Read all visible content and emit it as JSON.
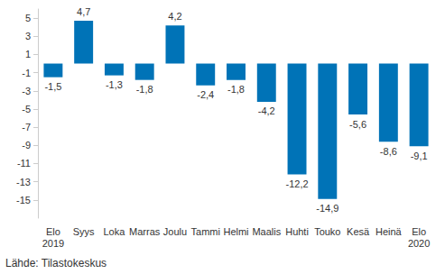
{
  "chart_data": {
    "type": "bar",
    "categories": [
      "Elo\n2019",
      "Syys",
      "Loka",
      "Marras",
      "Joulu",
      "Tammi",
      "Helmi",
      "Maalis",
      "Huhti",
      "Touko",
      "Kesä",
      "Heinä",
      "Elo\n2020"
    ],
    "values": [
      -1.5,
      4.7,
      -1.3,
      -1.8,
      4.2,
      -2.4,
      -1.8,
      -4.2,
      -12.2,
      -14.9,
      -5.6,
      -8.6,
      -9.1
    ],
    "value_labels": [
      "-1,5",
      "4,7",
      "-1,3",
      "-1,8",
      "4,2",
      "-2,4",
      "-1,8",
      "-4,2",
      "-12,2",
      "-14,9",
      "-5,6",
      "-8,6",
      "-9,1"
    ],
    "color": "#0073b7",
    "ylim": [
      -17,
      6
    ],
    "yticks": [
      -15,
      -13,
      -11,
      -9,
      -7,
      -5,
      -3,
      -1,
      1,
      3,
      5
    ],
    "grid": false,
    "data_labels": true,
    "annotations": [
      "Lähde: Tilastokeskus"
    ]
  }
}
